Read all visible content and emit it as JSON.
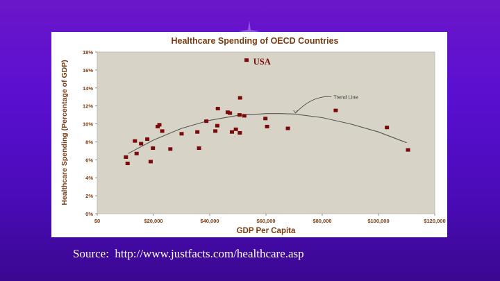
{
  "colors": {
    "plot_bg": "#d7d4c7",
    "marker": "#7a0a0a",
    "text_brown": "#7a3a10",
    "title_brown": "#7a3a10"
  },
  "source_text": "Source:  http://www.justfacts.com/healthcare.asp",
  "chart_data": {
    "type": "scatter",
    "title": "Healthcare Spending of OECD Countries",
    "xlabel": "GDP Per Capita",
    "ylabel": "Healthcare Spending (Percentage of GDP)",
    "xlim": [
      0,
      120000
    ],
    "ylim": [
      0,
      18
    ],
    "x_ticks": [
      0,
      20000,
      40000,
      60000,
      80000,
      100000,
      120000
    ],
    "x_tick_labels": [
      "$0",
      "$20,000",
      "$40,000",
      "$60,000",
      "$80,000",
      "$100,000",
      "$120,000"
    ],
    "y_ticks": [
      0,
      2,
      4,
      6,
      8,
      10,
      12,
      14,
      16,
      18
    ],
    "y_tick_labels": [
      "0%",
      "2%",
      "4%",
      "6%",
      "8%",
      "10%",
      "12%",
      "14%",
      "16%",
      "18%"
    ],
    "grid": false,
    "points": [
      {
        "x": 10200,
        "y": 6.3
      },
      {
        "x": 10800,
        "y": 5.6
      },
      {
        "x": 13400,
        "y": 8.1
      },
      {
        "x": 14000,
        "y": 6.7
      },
      {
        "x": 15600,
        "y": 7.8
      },
      {
        "x": 17800,
        "y": 8.3
      },
      {
        "x": 19000,
        "y": 5.8
      },
      {
        "x": 19800,
        "y": 7.3
      },
      {
        "x": 21500,
        "y": 9.7
      },
      {
        "x": 22100,
        "y": 9.9
      },
      {
        "x": 23100,
        "y": 9.2
      },
      {
        "x": 26000,
        "y": 7.2
      },
      {
        "x": 30000,
        "y": 8.9
      },
      {
        "x": 35600,
        "y": 9.1
      },
      {
        "x": 36200,
        "y": 7.3
      },
      {
        "x": 38800,
        "y": 10.3
      },
      {
        "x": 42000,
        "y": 9.2
      },
      {
        "x": 42700,
        "y": 9.8
      },
      {
        "x": 42900,
        "y": 11.7
      },
      {
        "x": 46400,
        "y": 11.3
      },
      {
        "x": 47200,
        "y": 11.2
      },
      {
        "x": 47900,
        "y": 9.1
      },
      {
        "x": 49300,
        "y": 9.4
      },
      {
        "x": 50600,
        "y": 11.0
      },
      {
        "x": 50700,
        "y": 9.0
      },
      {
        "x": 50800,
        "y": 12.9
      },
      {
        "x": 52300,
        "y": 10.9
      },
      {
        "x": 53100,
        "y": 17.1
      },
      {
        "x": 59800,
        "y": 10.6
      },
      {
        "x": 60400,
        "y": 9.7
      },
      {
        "x": 67800,
        "y": 9.5
      },
      {
        "x": 84800,
        "y": 11.5
      },
      {
        "x": 103000,
        "y": 9.6
      },
      {
        "x": 110500,
        "y": 7.1
      }
    ],
    "trendline": {
      "x": [
        11000,
        20000,
        30000,
        40000,
        50000,
        60000,
        65000,
        70000,
        80000,
        90000,
        100000,
        110000
      ],
      "y": [
        6.7,
        8.2,
        9.5,
        10.4,
        10.95,
        11.15,
        11.15,
        11.1,
        10.7,
        10.0,
        9.1,
        7.9
      ]
    },
    "annotations": [
      {
        "text": "USA",
        "x": 55500,
        "y": 16.6
      },
      {
        "text": "Trend Line",
        "x": 84000,
        "y": 12.8,
        "arrow_to": [
          70500,
          11.05
        ]
      }
    ]
  }
}
